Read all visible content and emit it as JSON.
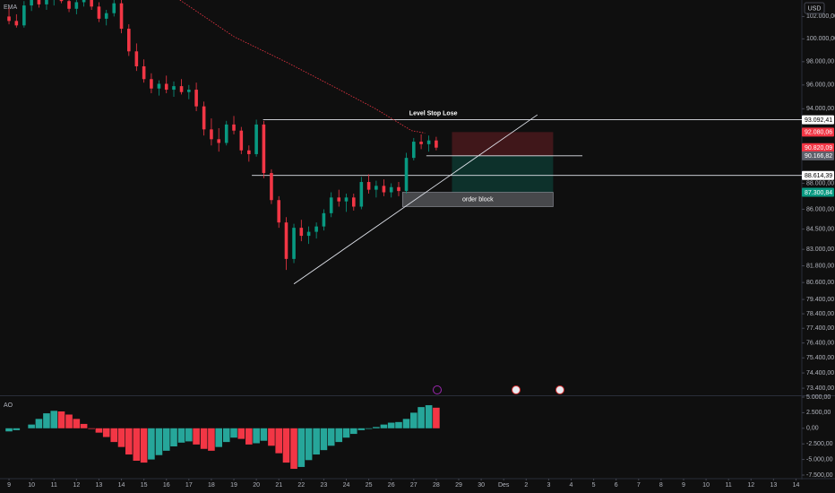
{
  "chart_data": [
    {
      "type": "candlestick",
      "legend": "EMA",
      "currency": "USD",
      "x": [
        0,
        0.33,
        0.67,
        1,
        1.33,
        1.67,
        2,
        2.33,
        2.67,
        3,
        3.33,
        3.67,
        4,
        4.33,
        4.67,
        5,
        5.33,
        5.67,
        6,
        6.33,
        6.67,
        7,
        7.33,
        7.67,
        8,
        8.33,
        8.67,
        9,
        9.33,
        9.67,
        10,
        10.33,
        10.67,
        11,
        11.33,
        11.67,
        12,
        12.33,
        12.67,
        13,
        13.33,
        13.67,
        14,
        14.33,
        14.67,
        15,
        15.33,
        15.67,
        16,
        16.33,
        16.67,
        17,
        17.33,
        17.67,
        18,
        18.33,
        18.67,
        19
      ],
      "open": [
        102000,
        101600,
        101200,
        103000,
        103600,
        103100,
        103500,
        104000,
        103400,
        102700,
        103300,
        103800,
        102900,
        101800,
        102300,
        103200,
        100900,
        98900,
        97600,
        96500,
        95700,
        96100,
        95600,
        95900,
        95400,
        95600,
        94200,
        92300,
        91500,
        91200,
        92700,
        92200,
        90600,
        90300,
        92700,
        88800,
        86700,
        85000,
        82300,
        84600,
        84000,
        84300,
        84700,
        85700,
        86900,
        86600,
        86900,
        86200,
        88100,
        87500,
        87800,
        87300,
        87700,
        87400,
        90000,
        91300,
        91100,
        91400
      ],
      "high": [
        102800,
        102200,
        103400,
        104200,
        104000,
        103900,
        104500,
        104300,
        103800,
        103500,
        104100,
        104000,
        103300,
        102600,
        104000,
        103500,
        101300,
        99600,
        98200,
        97000,
        96400,
        96800,
        96300,
        96500,
        96000,
        96200,
        94600,
        93200,
        92400,
        93000,
        93400,
        92500,
        91000,
        93100,
        93000,
        89100,
        87000,
        85400,
        84900,
        85200,
        84700,
        85000,
        86000,
        87300,
        87500,
        87200,
        87200,
        88500,
        88700,
        88200,
        88300,
        88000,
        88100,
        90400,
        91600,
        91900,
        91800,
        91700
      ],
      "low": [
        101300,
        101000,
        101000,
        102500,
        102800,
        102600,
        103000,
        103200,
        102400,
        102200,
        102900,
        102600,
        101500,
        101200,
        102000,
        100500,
        98500,
        97200,
        96200,
        95300,
        95100,
        95300,
        95000,
        95200,
        94800,
        93800,
        91800,
        91000,
        90500,
        91000,
        91900,
        90300,
        89700,
        90100,
        88400,
        86400,
        84600,
        81500,
        82000,
        83600,
        83400,
        83800,
        84400,
        85400,
        86200,
        85800,
        85900,
        86000,
        87200,
        86900,
        87000,
        86900,
        87000,
        87200,
        89800,
        90700,
        90500,
        90600
      ],
      "close": [
        101600,
        101200,
        103000,
        103600,
        103100,
        103500,
        104000,
        103400,
        102700,
        103300,
        103800,
        102900,
        101800,
        102300,
        103200,
        100900,
        98900,
        97600,
        96500,
        95700,
        96100,
        95600,
        95900,
        95400,
        95600,
        94200,
        92300,
        91500,
        91200,
        92700,
        92200,
        90600,
        90300,
        92700,
        88800,
        86700,
        85000,
        82300,
        84600,
        84000,
        84300,
        84700,
        85700,
        86900,
        86600,
        86900,
        86200,
        88100,
        87500,
        87800,
        87300,
        87700,
        87400,
        90000,
        91300,
        91100,
        91400,
        90820.09
      ],
      "up_color": "#089981",
      "down_color": "#f23645",
      "ema": {
        "color": "#f23645",
        "x": [
          7.6,
          10,
          12.4,
          14.7,
          16.3,
          17.9,
          18.5
        ],
        "values": [
          103500,
          100200,
          97900,
          95600,
          94000,
          92200,
          92000
        ]
      },
      "log_scale": true,
      "ylim": [
        73000,
        103500
      ],
      "yticks": [
        {
          "value": 102000,
          "label": "102.000,00"
        },
        {
          "value": 100000,
          "label": "100.000,00"
        },
        {
          "value": 98000,
          "label": "98.000,00"
        },
        {
          "value": 96000,
          "label": "96.000,00"
        },
        {
          "value": 94000,
          "label": "94.000,00"
        },
        {
          "value": 88000,
          "label": "88.000,00"
        },
        {
          "value": 86000,
          "label": "86.000,00"
        },
        {
          "value": 84500,
          "label": "84.500,00"
        },
        {
          "value": 83000,
          "label": "83.000,00"
        },
        {
          "value": 81800,
          "label": "81.800,00"
        },
        {
          "value": 80600,
          "label": "80.600,00"
        },
        {
          "value": 79400,
          "label": "79.400,00"
        },
        {
          "value": 78400,
          "label": "78.400,00"
        },
        {
          "value": 77400,
          "label": "77.400,00"
        },
        {
          "value": 76400,
          "label": "76.400,00"
        },
        {
          "value": 75400,
          "label": "75.400,00"
        },
        {
          "value": 74400,
          "label": "74.400,00"
        },
        {
          "value": 73400,
          "label": "73.400,00"
        }
      ],
      "xlim": [
        -0.4,
        35.26
      ],
      "xticks": [
        {
          "value": 0,
          "label": "9"
        },
        {
          "value": 1,
          "label": "10"
        },
        {
          "value": 2,
          "label": "11"
        },
        {
          "value": 3,
          "label": "12"
        },
        {
          "value": 4,
          "label": "13"
        },
        {
          "value": 5,
          "label": "14"
        },
        {
          "value": 6,
          "label": "15"
        },
        {
          "value": 7,
          "label": "16"
        },
        {
          "value": 8,
          "label": "17"
        },
        {
          "value": 9,
          "label": "18"
        },
        {
          "value": 10,
          "label": "19"
        },
        {
          "value": 11,
          "label": "20"
        },
        {
          "value": 12,
          "label": "21"
        },
        {
          "value": 13,
          "label": "22"
        },
        {
          "value": 14,
          "label": "23"
        },
        {
          "value": 15,
          "label": "24"
        },
        {
          "value": 16,
          "label": "25"
        },
        {
          "value": 17,
          "label": "26"
        },
        {
          "value": 18,
          "label": "27"
        },
        {
          "value": 19,
          "label": "28"
        },
        {
          "value": 20,
          "label": "29"
        },
        {
          "value": 21,
          "label": "30"
        },
        {
          "value": 22,
          "label": "Des"
        },
        {
          "value": 23,
          "label": "2"
        },
        {
          "value": 24,
          "label": "3"
        },
        {
          "value": 25,
          "label": "4"
        },
        {
          "value": 26,
          "label": "5"
        },
        {
          "value": 27,
          "label": "6"
        },
        {
          "value": 28,
          "label": "7"
        },
        {
          "value": 29,
          "label": "8"
        },
        {
          "value": 30,
          "label": "9"
        },
        {
          "value": 31,
          "label": "10"
        },
        {
          "value": 32,
          "label": "11"
        },
        {
          "value": 33,
          "label": "12"
        },
        {
          "value": 34,
          "label": "13"
        },
        {
          "value": 35,
          "label": "14"
        }
      ],
      "levels": [
        {
          "name": "Level Stop Lose",
          "value": 93092.41,
          "x": [
            11.3,
            35.26
          ]
        },
        {
          "value": 88614.39,
          "x": [
            10.8,
            35.26
          ]
        },
        {
          "value": 90166.82,
          "x": [
            18.56,
            25.5
          ]
        }
      ],
      "order_block": {
        "name": "order block",
        "values": [
          87300.84,
          86200
        ],
        "x": [
          17.5,
          24.2
        ]
      },
      "position": {
        "stop": 92080.06,
        "entry": 90166.82,
        "target": 87300.84,
        "x": [
          19.7,
          24.2
        ]
      },
      "trendline": {
        "x": [
          12.67,
          23.5
        ],
        "values": [
          80500,
          93500
        ]
      },
      "price_labels": [
        {
          "value": 93092.41,
          "label": "93.092,41",
          "color": "#ffffff",
          "text_color": "#000000"
        },
        {
          "value": 92080.06,
          "label": "92.080,06",
          "color": "#f23645",
          "text_color": "#ffffff"
        },
        {
          "value": 90820.09,
          "label": "90.820,09",
          "color": "#f23645",
          "text_color": "#ffffff"
        },
        {
          "value": 90166.82,
          "label": "90.166,82",
          "color": "#5d606b",
          "text_color": "#ffffff"
        },
        {
          "value": 88614.39,
          "label": "88.614,39",
          "color": "#ffffff",
          "text_color": "#000000"
        },
        {
          "value": 87300.84,
          "label": "87.300,84",
          "color": "#089981",
          "text_color": "#ffffff"
        }
      ]
    },
    {
      "type": "histogram",
      "title": "AO",
      "values": [
        -500,
        -300,
        0,
        600,
        1500,
        2400,
        2800,
        2700,
        2200,
        1500,
        700,
        -100,
        -700,
        -1400,
        -2200,
        -3000,
        -4200,
        -5200,
        -5500,
        -5000,
        -4300,
        -3600,
        -2900,
        -2300,
        -2100,
        -2600,
        -3300,
        -3600,
        -3000,
        -2200,
        -1500,
        -1700,
        -2600,
        -2400,
        -2000,
        -2800,
        -4000,
        -5500,
        -6500,
        -6200,
        -5100,
        -4200,
        -3500,
        -2800,
        -2200,
        -1500,
        -900,
        -300,
        -100,
        200,
        600,
        900,
        1000,
        1500,
        2500,
        3400,
        3700,
        3300
      ],
      "rising_color": "#26a69a",
      "falling_color": "#f23645",
      "ylim": [
        -7500,
        5000
      ],
      "yticks": [
        {
          "value": 5000,
          "label": "5.000,00"
        },
        {
          "value": 2500,
          "label": "2.500,00"
        },
        {
          "value": 0,
          "label": "0,00"
        },
        {
          "value": -2500,
          "label": "-2.500,00"
        },
        {
          "value": -5000,
          "label": "-5.000,00"
        },
        {
          "value": -7500,
          "label": "-7.500,00"
        }
      ]
    }
  ]
}
